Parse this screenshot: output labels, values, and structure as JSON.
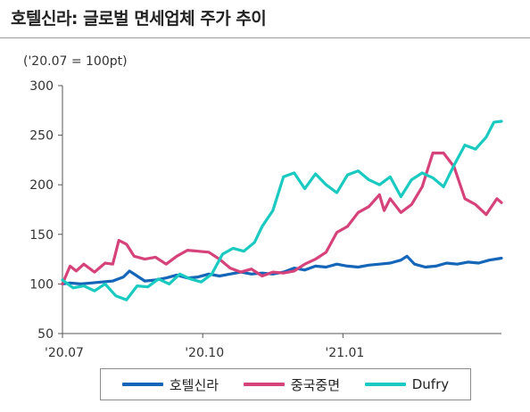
{
  "title": "호텔신라: 글로벌 면세업체 주가 추이",
  "unit_note": "('20.07 = 100pt)",
  "legend": [
    {
      "name": "호텔신라",
      "color": "#1565b8"
    },
    {
      "name": "중국중면",
      "color": "#d6427a"
    },
    {
      "name": "Dufry",
      "color": "#1ac9c0"
    }
  ],
  "chart_data": {
    "type": "line",
    "title": "호텔신라: 글로벌 면세업체 주가 추이",
    "ylabel": "('20.07 = 100pt)",
    "xlabel": "",
    "x_start": "2020-07-01",
    "x_end": "2021-04-15",
    "x_ticks": [
      {
        "label": "'20.07",
        "date": "2020-07-01"
      },
      {
        "label": "'20.10",
        "date": "2020-10-01"
      },
      {
        "label": "'21.01",
        "date": "2021-01-01"
      }
    ],
    "ylim": [
      50,
      300
    ],
    "y_ticks": [
      50,
      100,
      150,
      200,
      250,
      300
    ],
    "grid": false,
    "legend_position": "bottom",
    "series": [
      {
        "name": "호텔신라",
        "color": "#1565b8",
        "points": [
          [
            "2020-07-01",
            100
          ],
          [
            "2020-07-06",
            101
          ],
          [
            "2020-07-13",
            100
          ],
          [
            "2020-07-20",
            101
          ],
          [
            "2020-07-27",
            102
          ],
          [
            "2020-08-03",
            103
          ],
          [
            "2020-08-10",
            107
          ],
          [
            "2020-08-14",
            113
          ],
          [
            "2020-08-19",
            108
          ],
          [
            "2020-08-24",
            103
          ],
          [
            "2020-08-31",
            104
          ],
          [
            "2020-09-07",
            106
          ],
          [
            "2020-09-14",
            109
          ],
          [
            "2020-09-21",
            106
          ],
          [
            "2020-09-28",
            107
          ],
          [
            "2020-10-05",
            110
          ],
          [
            "2020-10-12",
            108
          ],
          [
            "2020-10-19",
            110
          ],
          [
            "2020-10-26",
            112
          ],
          [
            "2020-11-02",
            110
          ],
          [
            "2020-11-09",
            111
          ],
          [
            "2020-11-16",
            110
          ],
          [
            "2020-11-23",
            112
          ],
          [
            "2020-11-30",
            116
          ],
          [
            "2020-12-07",
            114
          ],
          [
            "2020-12-14",
            118
          ],
          [
            "2020-12-21",
            117
          ],
          [
            "2020-12-28",
            120
          ],
          [
            "2021-01-04",
            118
          ],
          [
            "2021-01-11",
            117
          ],
          [
            "2021-01-18",
            119
          ],
          [
            "2021-01-25",
            120
          ],
          [
            "2021-02-01",
            121
          ],
          [
            "2021-02-08",
            124
          ],
          [
            "2021-02-12",
            128
          ],
          [
            "2021-02-17",
            120
          ],
          [
            "2021-02-24",
            117
          ],
          [
            "2021-03-03",
            118
          ],
          [
            "2021-03-10",
            121
          ],
          [
            "2021-03-17",
            120
          ],
          [
            "2021-03-24",
            122
          ],
          [
            "2021-03-31",
            121
          ],
          [
            "2021-04-07",
            124
          ],
          [
            "2021-04-15",
            126
          ]
        ]
      },
      {
        "name": "중국중면",
        "color": "#d6427a",
        "points": [
          [
            "2020-07-01",
            100
          ],
          [
            "2020-07-06",
            118
          ],
          [
            "2020-07-10",
            113
          ],
          [
            "2020-07-15",
            120
          ],
          [
            "2020-07-22",
            112
          ],
          [
            "2020-07-29",
            121
          ],
          [
            "2020-08-03",
            120
          ],
          [
            "2020-08-07",
            144
          ],
          [
            "2020-08-12",
            140
          ],
          [
            "2020-08-17",
            128
          ],
          [
            "2020-08-24",
            125
          ],
          [
            "2020-08-31",
            127
          ],
          [
            "2020-09-07",
            120
          ],
          [
            "2020-09-14",
            128
          ],
          [
            "2020-09-21",
            134
          ],
          [
            "2020-09-28",
            133
          ],
          [
            "2020-10-05",
            132
          ],
          [
            "2020-10-12",
            125
          ],
          [
            "2020-10-19",
            116
          ],
          [
            "2020-10-26",
            112
          ],
          [
            "2020-11-02",
            115
          ],
          [
            "2020-11-09",
            108
          ],
          [
            "2020-11-16",
            112
          ],
          [
            "2020-11-23",
            111
          ],
          [
            "2020-11-30",
            113
          ],
          [
            "2020-12-07",
            120
          ],
          [
            "2020-12-14",
            125
          ],
          [
            "2020-12-21",
            132
          ],
          [
            "2020-12-28",
            152
          ],
          [
            "2021-01-04",
            158
          ],
          [
            "2021-01-11",
            172
          ],
          [
            "2021-01-18",
            178
          ],
          [
            "2021-01-25",
            190
          ],
          [
            "2021-01-28",
            174
          ],
          [
            "2021-02-01",
            186
          ],
          [
            "2021-02-08",
            172
          ],
          [
            "2021-02-15",
            180
          ],
          [
            "2021-02-22",
            198
          ],
          [
            "2021-03-01",
            232
          ],
          [
            "2021-03-08",
            232
          ],
          [
            "2021-03-15",
            218
          ],
          [
            "2021-03-22",
            186
          ],
          [
            "2021-03-29",
            180
          ],
          [
            "2021-04-05",
            170
          ],
          [
            "2021-04-12",
            186
          ],
          [
            "2021-04-15",
            182
          ]
        ]
      },
      {
        "name": "Dufry",
        "color": "#1ac9c0",
        "points": [
          [
            "2020-07-01",
            104
          ],
          [
            "2020-07-08",
            96
          ],
          [
            "2020-07-15",
            98
          ],
          [
            "2020-07-22",
            93
          ],
          [
            "2020-07-29",
            100
          ],
          [
            "2020-08-05",
            88
          ],
          [
            "2020-08-12",
            84
          ],
          [
            "2020-08-19",
            98
          ],
          [
            "2020-08-26",
            97
          ],
          [
            "2020-09-02",
            105
          ],
          [
            "2020-09-09",
            100
          ],
          [
            "2020-09-16",
            110
          ],
          [
            "2020-09-23",
            105
          ],
          [
            "2020-09-30",
            102
          ],
          [
            "2020-10-07",
            110
          ],
          [
            "2020-10-14",
            130
          ],
          [
            "2020-10-21",
            136
          ],
          [
            "2020-10-28",
            133
          ],
          [
            "2020-11-04",
            142
          ],
          [
            "2020-11-09",
            158
          ],
          [
            "2020-11-16",
            174
          ],
          [
            "2020-11-23",
            208
          ],
          [
            "2020-11-30",
            212
          ],
          [
            "2020-12-07",
            196
          ],
          [
            "2020-12-14",
            211
          ],
          [
            "2020-12-21",
            200
          ],
          [
            "2020-12-28",
            192
          ],
          [
            "2021-01-04",
            210
          ],
          [
            "2021-01-11",
            214
          ],
          [
            "2021-01-18",
            205
          ],
          [
            "2021-01-25",
            200
          ],
          [
            "2021-02-01",
            208
          ],
          [
            "2021-02-08",
            188
          ],
          [
            "2021-02-15",
            205
          ],
          [
            "2021-02-22",
            212
          ],
          [
            "2021-03-01",
            207
          ],
          [
            "2021-03-08",
            198
          ],
          [
            "2021-03-15",
            220
          ],
          [
            "2021-03-22",
            240
          ],
          [
            "2021-03-29",
            236
          ],
          [
            "2021-04-05",
            248
          ],
          [
            "2021-04-10",
            263
          ],
          [
            "2021-04-15",
            264
          ]
        ]
      }
    ]
  }
}
